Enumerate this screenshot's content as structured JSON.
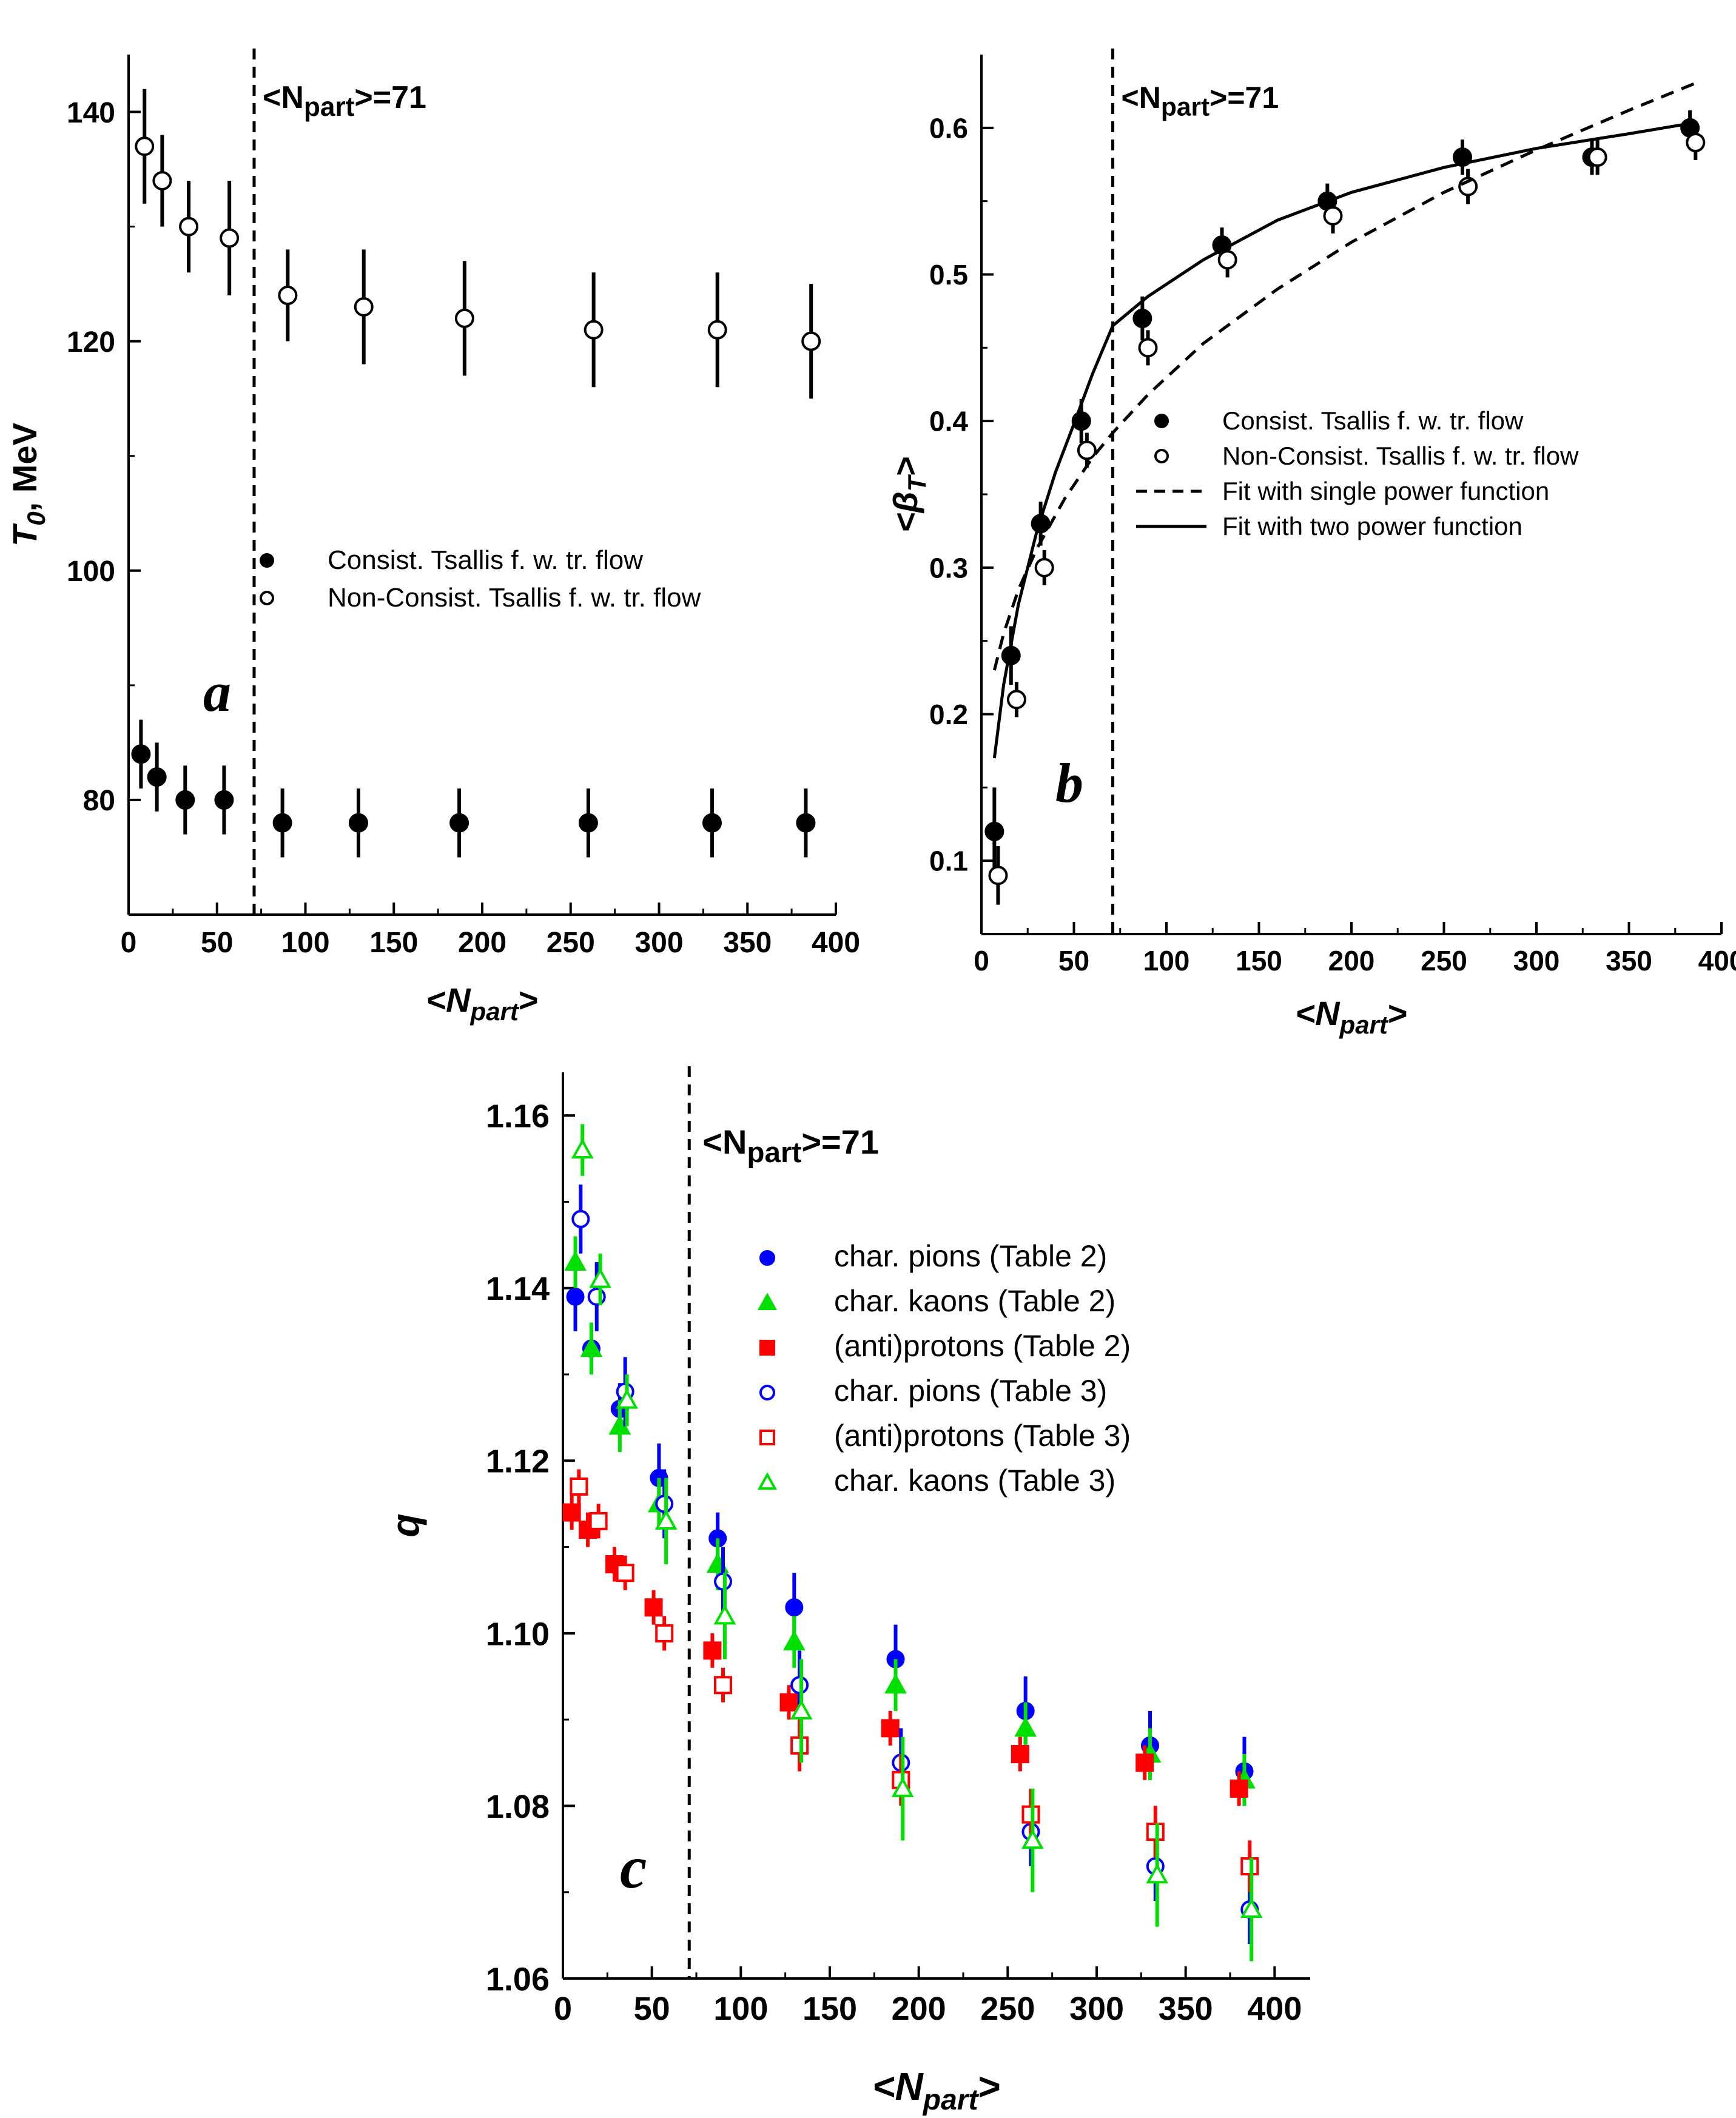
{
  "chart_data": [
    {
      "type": "scatter",
      "panel_label": "a",
      "xlabel": "<N",
      "xlabel_sub": "part",
      "xlabel_close": ">",
      "ylabel": "T",
      "ylabel_sub": "0",
      "ylabel_rest": ", MeV",
      "xlim": [
        0,
        400
      ],
      "ylim": [
        70,
        145
      ],
      "xticks": [
        0,
        50,
        100,
        150,
        200,
        250,
        300,
        350,
        400
      ],
      "yticks": [
        80,
        100,
        120,
        140
      ],
      "annotation": {
        "pre": "<N",
        "sub": "part",
        "post": ">=71",
        "x": 71
      },
      "legend_position": "center-right",
      "series": [
        {
          "name": "Consist. Tsallis f. w. tr. flow",
          "marker": "filled-circle",
          "color": "#000000",
          "x": [
            7,
            16,
            32,
            54,
            87,
            130,
            187,
            260,
            330,
            383
          ],
          "y": [
            84,
            82,
            80,
            80,
            78,
            78,
            78,
            78,
            78,
            78
          ],
          "err": [
            3,
            3,
            3,
            3,
            3,
            3,
            3,
            3,
            3,
            3
          ]
        },
        {
          "name": "Non-Consist. Tsallis f. w. tr. flow",
          "marker": "open-circle",
          "color": "#000000",
          "x": [
            9,
            19,
            34,
            57,
            90,
            133,
            190,
            263,
            333,
            386
          ],
          "y": [
            137,
            134,
            130,
            129,
            124,
            123,
            122,
            121,
            121,
            120
          ],
          "err": [
            5,
            4,
            4,
            5,
            4,
            5,
            5,
            5,
            5,
            5
          ]
        }
      ]
    },
    {
      "type": "scatter",
      "panel_label": "b",
      "xlabel": "<N",
      "xlabel_sub": "part",
      "xlabel_close": ">",
      "ylabel": "<β",
      "ylabel_sub": "T",
      "ylabel_rest": ">",
      "xlim": [
        0,
        400
      ],
      "ylim": [
        0.05,
        0.65
      ],
      "xticks": [
        0,
        50,
        100,
        150,
        200,
        250,
        300,
        350,
        400
      ],
      "yticks": [
        0.1,
        0.2,
        0.3,
        0.4,
        0.5,
        0.6
      ],
      "annotation": {
        "pre": "<N",
        "sub": "part",
        "post": ">=71",
        "x": 71
      },
      "legend_position": "center-right",
      "series": [
        {
          "name": "Consist. Tsallis f. w. tr. flow",
          "marker": "filled-circle",
          "color": "#000000",
          "x": [
            7,
            16,
            32,
            54,
            87,
            130,
            187,
            260,
            330,
            383
          ],
          "y": [
            0.12,
            0.24,
            0.33,
            0.4,
            0.47,
            0.52,
            0.55,
            0.58,
            0.58,
            0.6
          ],
          "err": [
            0.03,
            0.02,
            0.015,
            0.015,
            0.015,
            0.012,
            0.012,
            0.012,
            0.012,
            0.012
          ]
        },
        {
          "name": "Non-Consist. Tsallis f. w. tr. flow",
          "marker": "open-circle",
          "color": "#000000",
          "x": [
            9,
            19,
            34,
            57,
            90,
            133,
            190,
            263,
            333,
            386
          ],
          "y": [
            0.09,
            0.21,
            0.3,
            0.38,
            0.45,
            0.51,
            0.54,
            0.56,
            0.58,
            0.59
          ],
          "err": [
            0.02,
            0.012,
            0.012,
            0.012,
            0.012,
            0.012,
            0.012,
            0.012,
            0.012,
            0.012
          ]
        },
        {
          "name": "Fit with single power function",
          "line": "dashed",
          "color": "#000000",
          "x": [
            7,
            12,
            20,
            30,
            45,
            60,
            71,
            90,
            120,
            160,
            200,
            250,
            300,
            350,
            385
          ],
          "y": [
            0.23,
            0.255,
            0.285,
            0.313,
            0.347,
            0.375,
            0.392,
            0.418,
            0.453,
            0.49,
            0.522,
            0.556,
            0.585,
            0.612,
            0.63
          ]
        },
        {
          "name": "Fit with two power function",
          "line": "solid",
          "color": "#000000",
          "x": [
            7,
            12,
            20,
            30,
            40,
            50,
            60,
            71,
            90,
            120,
            160,
            200,
            250,
            300,
            350,
            383
          ],
          "y": [
            0.17,
            0.22,
            0.275,
            0.325,
            0.365,
            0.398,
            0.432,
            0.465,
            0.485,
            0.51,
            0.537,
            0.556,
            0.573,
            0.586,
            0.596,
            0.603
          ]
        }
      ]
    },
    {
      "type": "scatter",
      "panel_label": "c",
      "xlabel": "<N",
      "xlabel_sub": "part",
      "xlabel_close": ">",
      "ylabel": "q",
      "xlim": [
        0,
        420
      ],
      "ylim": [
        1.06,
        1.165
      ],
      "xticks": [
        0,
        50,
        100,
        150,
        200,
        250,
        300,
        350,
        400
      ],
      "yticks": [
        1.06,
        1.08,
        1.1,
        1.12,
        1.14,
        1.16
      ],
      "ytick_labels": [
        "1.06",
        "1.08",
        "1.10",
        "1.12",
        "1.14",
        "1.16"
      ],
      "annotation": {
        "pre": "<N",
        "sub": "part",
        "post": ">=71",
        "x": 71
      },
      "legend_position": "top-right",
      "series": [
        {
          "name": "char. pions (Table 2)",
          "marker": "filled-circle",
          "color": "#0000ff",
          "x": [
            7,
            16,
            32,
            54,
            87,
            130,
            187,
            260,
            330,
            383
          ],
          "y": [
            1.139,
            1.133,
            1.126,
            1.118,
            1.111,
            1.103,
            1.097,
            1.091,
            1.087,
            1.084
          ],
          "err": [
            0.004,
            0.003,
            0.003,
            0.004,
            0.003,
            0.004,
            0.004,
            0.004,
            0.004,
            0.004
          ]
        },
        {
          "name": "char. kaons (Table 2)",
          "marker": "filled-triangle",
          "color": "#00e000",
          "x": [
            7,
            16,
            32,
            54,
            87,
            130,
            187,
            260,
            330,
            383
          ],
          "y": [
            1.143,
            1.133,
            1.124,
            1.115,
            1.108,
            1.099,
            1.094,
            1.089,
            1.086,
            1.083
          ],
          "err": [
            0.003,
            0.003,
            0.003,
            0.003,
            0.003,
            0.003,
            0.003,
            0.003,
            0.003,
            0.003
          ]
        },
        {
          "name": "(anti)protons (Table 2)",
          "marker": "filled-square",
          "color": "#ff0000",
          "x": [
            5,
            14,
            29,
            51,
            84,
            127,
            184,
            257,
            327,
            380
          ],
          "y": [
            1.114,
            1.112,
            1.108,
            1.103,
            1.098,
            1.092,
            1.089,
            1.086,
            1.085,
            1.082
          ],
          "err": [
            0.002,
            0.002,
            0.002,
            0.002,
            0.002,
            0.002,
            0.002,
            0.002,
            0.002,
            0.002
          ]
        },
        {
          "name": "char. pions (Table 3)",
          "marker": "open-circle",
          "color": "#0000ff",
          "x": [
            10,
            19,
            35,
            57,
            90,
            133,
            190,
            263,
            333,
            386
          ],
          "y": [
            1.148,
            1.139,
            1.128,
            1.115,
            1.106,
            1.094,
            1.085,
            1.077,
            1.073,
            1.068
          ],
          "err": [
            0.004,
            0.004,
            0.004,
            0.004,
            0.004,
            0.004,
            0.004,
            0.004,
            0.004,
            0.004
          ]
        },
        {
          "name": "(anti)protons (Table 3)",
          "marker": "open-square",
          "color": "#ff0000",
          "x": [
            9,
            20,
            35,
            57,
            90,
            133,
            190,
            263,
            333,
            386
          ],
          "y": [
            1.117,
            1.113,
            1.107,
            1.1,
            1.094,
            1.087,
            1.083,
            1.079,
            1.077,
            1.073
          ],
          "err": [
            0.002,
            0.002,
            0.002,
            0.002,
            0.002,
            0.003,
            0.003,
            0.003,
            0.003,
            0.003
          ]
        },
        {
          "name": "char. kaons (Table 3)",
          "marker": "open-triangle",
          "color": "#00e000",
          "x": [
            11,
            21,
            36,
            58,
            91,
            134,
            191,
            264,
            334,
            387
          ],
          "y": [
            1.156,
            1.141,
            1.127,
            1.113,
            1.102,
            1.091,
            1.082,
            1.076,
            1.072,
            1.068
          ],
          "err": [
            0.003,
            0.003,
            0.003,
            0.005,
            0.005,
            0.006,
            0.006,
            0.006,
            0.006,
            0.006
          ]
        }
      ]
    }
  ]
}
